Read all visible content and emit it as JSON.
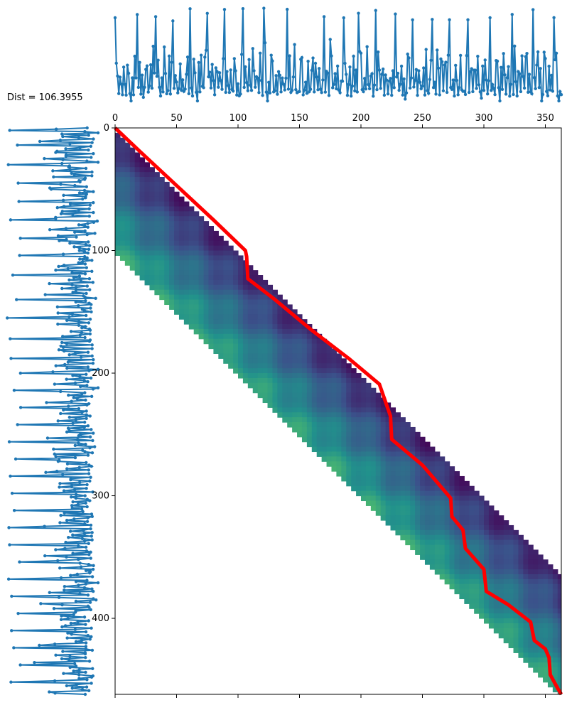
{
  "chart_data": {
    "type": "heatmap",
    "title": "Dist = 106.3955",
    "xlabel": "",
    "ylabel": "",
    "xlim": [
      0,
      363
    ],
    "ylim": [
      462,
      0
    ],
    "x_ticks": [
      0,
      50,
      100,
      150,
      200,
      250,
      300,
      350
    ],
    "y_ticks": [
      0,
      100,
      200,
      300,
      400
    ],
    "colormap": "viridis",
    "band": {
      "lower_offset": 100,
      "upper_offset": -100,
      "note_rows": "cost matrix drawn only inside a diagonal band"
    },
    "warping_path": {
      "color": "#ff0000",
      "points": [
        [
          0,
          0
        ],
        [
          20,
          19
        ],
        [
          50,
          47
        ],
        [
          80,
          75
        ],
        [
          106,
          100
        ],
        [
          107,
          105
        ],
        [
          108,
          123
        ],
        [
          130,
          140
        ],
        [
          160,
          165
        ],
        [
          190,
          188
        ],
        [
          215,
          209
        ],
        [
          224,
          235
        ],
        [
          225,
          254
        ],
        [
          250,
          275
        ],
        [
          273,
          302
        ],
        [
          274,
          317
        ],
        [
          283,
          328
        ],
        [
          285,
          343
        ],
        [
          300,
          360
        ],
        [
          302,
          378
        ],
        [
          320,
          389
        ],
        [
          338,
          403
        ],
        [
          341,
          418
        ],
        [
          350,
          425
        ],
        [
          353,
          432
        ],
        [
          354,
          446
        ],
        [
          360,
          457
        ],
        [
          363,
          462
        ]
      ]
    },
    "series": [
      {
        "name": "top-series",
        "color": "#1f77b4",
        "length": 364,
        "base_level": 0.3,
        "spike_positions": [
          0,
          18,
          33,
          47,
          61,
          75,
          89,
          104,
          121,
          140,
          170,
          186,
          198,
          212,
          228,
          242,
          258,
          272,
          287,
          305,
          323,
          340,
          357
        ]
      },
      {
        "name": "left-series",
        "color": "#1f77b4",
        "length": 463,
        "base_level": 0.3,
        "spike_positions": [
          2,
          14,
          30,
          45,
          60,
          75,
          90,
          104,
          120,
          140,
          155,
          172,
          188,
          200,
          214,
          228,
          242,
          256,
          270,
          284,
          298,
          312,
          326,
          340,
          354,
          368,
          382,
          396,
          410,
          424,
          438,
          452
        ]
      }
    ]
  }
}
